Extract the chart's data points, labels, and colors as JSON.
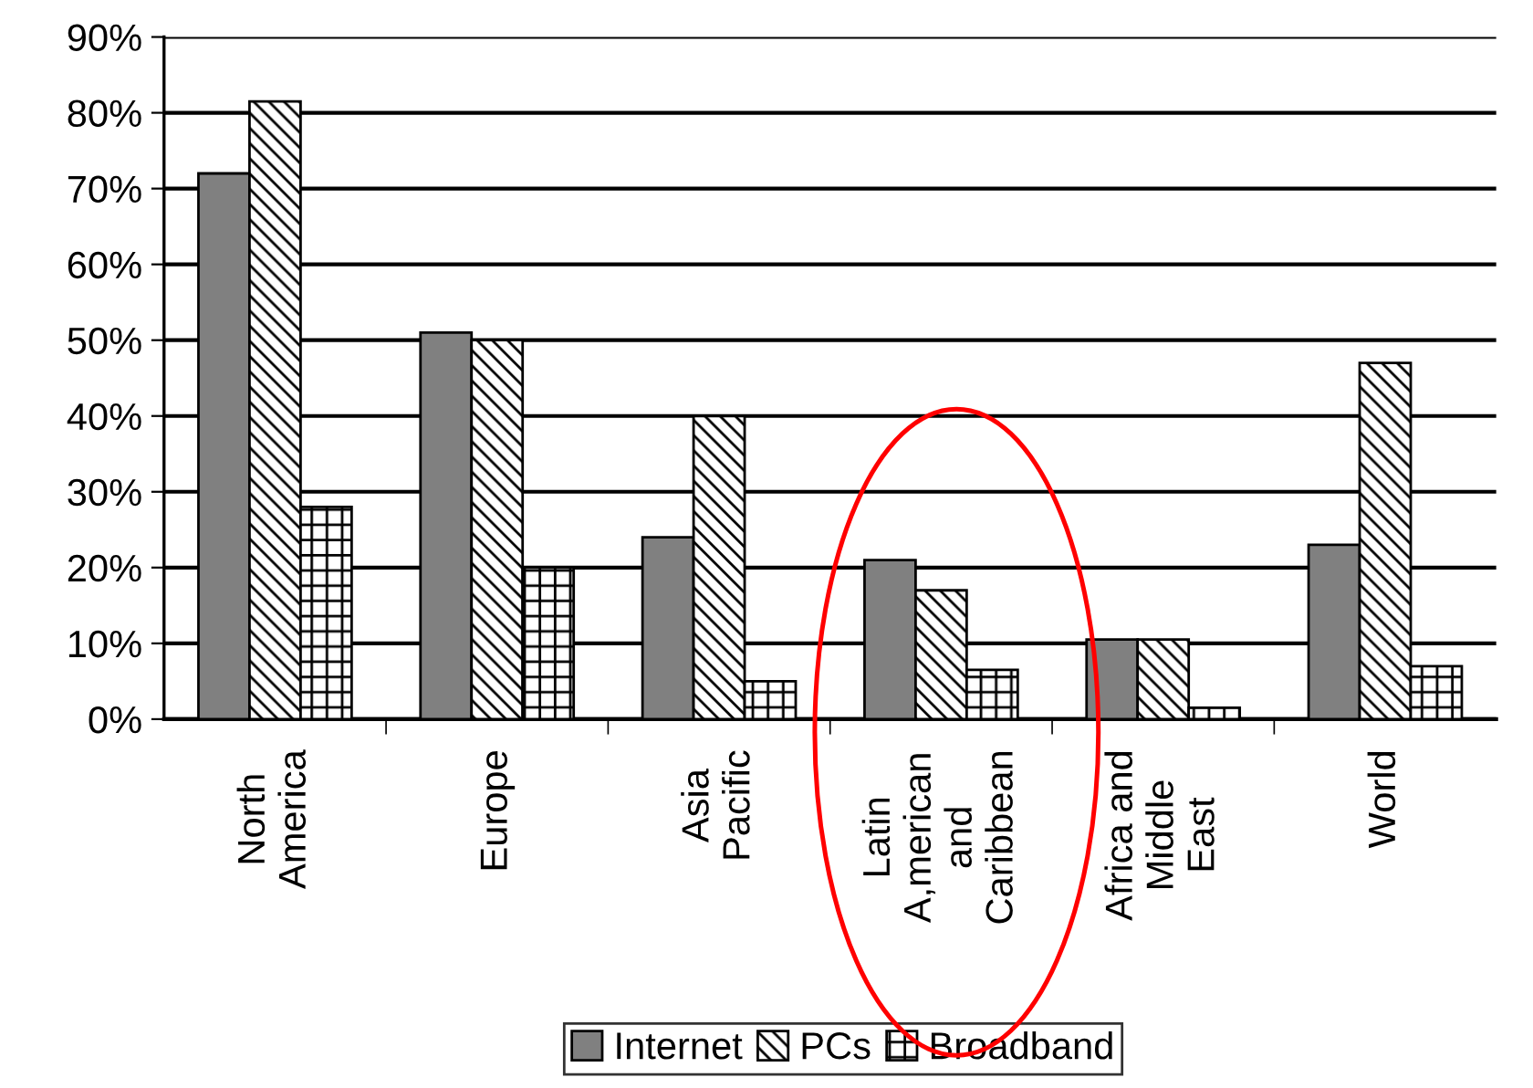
{
  "chart_data": {
    "type": "bar",
    "categories": [
      "North\nAmerica",
      "Europe",
      "Asia\nPacific",
      "Latin\nA,merican\nand\nCaribbean",
      "Africa and\nMiddle\nEast",
      "World"
    ],
    "series": [
      {
        "name": "Internet",
        "color": "#808080",
        "values": [
          72,
          51,
          24,
          21,
          10.5,
          23
        ]
      },
      {
        "name": "PCs",
        "color": "#000000",
        "values": [
          81.5,
          50,
          40,
          17,
          10.5,
          47
        ]
      },
      {
        "name": "Broadband",
        "color": "#000000",
        "values": [
          28,
          20,
          5,
          6.5,
          1.5,
          7
        ]
      }
    ],
    "ylim": [
      0,
      90
    ],
    "yticks": [
      {
        "value": 0,
        "label": "0%"
      },
      {
        "value": 10,
        "label": "10%"
      },
      {
        "value": 20,
        "label": "20%"
      },
      {
        "value": 30,
        "label": "30%"
      },
      {
        "value": 40,
        "label": "40%"
      },
      {
        "value": 50,
        "label": "50%"
      },
      {
        "value": 60,
        "label": "60%"
      },
      {
        "value": 70,
        "label": "70%"
      },
      {
        "value": 80,
        "label": "80%"
      },
      {
        "value": 90,
        "label": "90%"
      }
    ],
    "grid": "y",
    "legend": "bottom"
  }
}
